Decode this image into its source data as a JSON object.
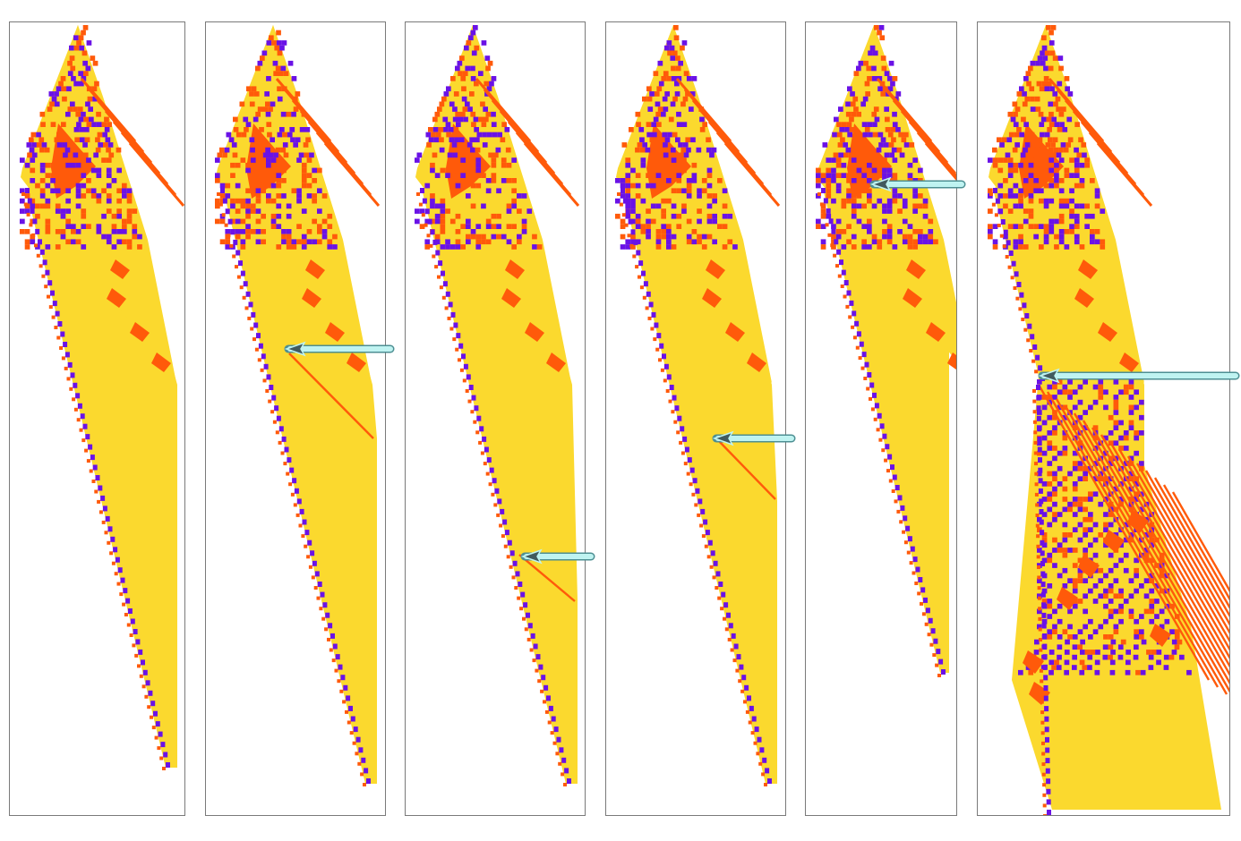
{
  "figure": {
    "colors": {
      "background": "#ffffff",
      "frame": "#7a7a7a",
      "body": "#fbd92e",
      "orange": "#ff5a0a",
      "purple": "#6a12e6",
      "arrow": "#bff3f1",
      "arrow_outline": "#4d8f93",
      "arrow_head": "#415a5e"
    },
    "panels": [
      {
        "id": "panel-1",
        "arrow": null,
        "body": "short"
      },
      {
        "id": "panel-2",
        "arrow": "diagonal-at-row-77",
        "body": "long"
      },
      {
        "id": "panel-3",
        "arrow": "diagonal-at-row-117",
        "body": "long"
      },
      {
        "id": "panel-4",
        "arrow": "diagonal-at-row-93",
        "body": "long"
      },
      {
        "id": "panel-5",
        "arrow": "upper-triangle",
        "body": "clipped"
      },
      {
        "id": "panel-6",
        "arrow": "crossing-at-row-84",
        "body": "expanded"
      }
    ]
  }
}
